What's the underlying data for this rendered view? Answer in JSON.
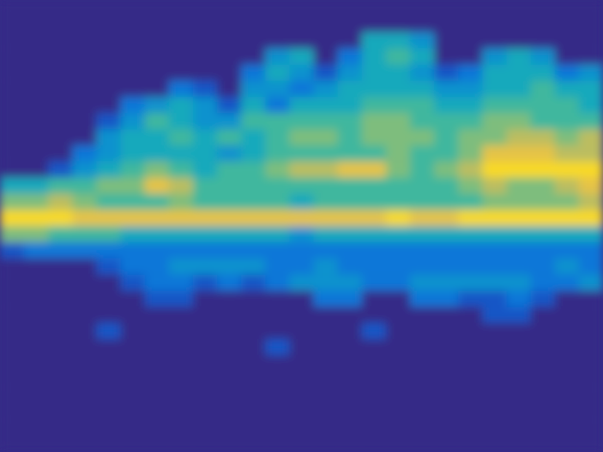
{
  "chart_data": {
    "type": "heatmap",
    "tick_labels": false,
    "zlim": [
      0,
      10
    ],
    "z": [
      [
        0,
        0,
        0,
        0,
        0,
        0,
        0,
        0,
        0,
        0,
        0,
        0,
        0,
        0,
        0,
        0,
        0,
        0,
        0,
        0,
        0,
        0,
        0,
        0,
        0
      ],
      [
        0,
        0,
        0,
        0,
        0,
        0,
        0,
        0,
        0,
        0,
        0,
        0,
        0,
        0,
        0,
        0,
        0,
        0,
        0,
        0,
        0,
        0,
        0,
        0,
        0
      ],
      [
        0,
        0,
        0,
        0,
        0,
        0,
        0,
        0,
        0,
        0,
        0,
        0,
        0,
        0,
        0,
        4,
        4,
        3,
        0,
        0,
        0,
        0,
        0,
        0,
        0
      ],
      [
        0,
        0,
        0,
        0,
        0,
        0,
        0,
        0,
        0,
        0,
        0,
        3,
        4,
        0,
        2,
        4,
        5,
        4,
        0,
        0,
        3,
        4,
        3,
        0,
        0
      ],
      [
        0,
        0,
        0,
        0,
        0,
        0,
        0,
        0,
        0,
        0,
        2,
        4,
        3,
        1,
        3,
        4,
        4,
        3,
        1,
        2,
        4,
        4,
        4,
        2,
        3
      ],
      [
        0,
        0,
        0,
        0,
        0,
        0,
        0,
        2,
        1,
        0,
        3,
        3,
        2,
        3,
        4,
        4,
        4,
        4,
        3,
        3,
        4,
        4,
        5,
        4,
        4
      ],
      [
        0,
        0,
        0,
        0,
        0,
        2,
        3,
        4,
        3,
        1,
        4,
        2,
        4,
        4,
        4,
        5,
        5,
        5,
        4,
        4,
        5,
        5,
        5,
        5,
        4
      ],
      [
        0,
        0,
        0,
        0,
        1,
        3,
        5,
        4,
        3,
        3,
        5,
        5,
        5,
        5,
        5,
        6,
        6,
        5,
        5,
        5,
        6,
        6,
        5,
        5,
        5
      ],
      [
        0,
        0,
        0,
        0,
        3,
        4,
        4,
        5,
        4,
        5,
        4,
        5,
        6,
        6,
        5,
        6,
        6,
        6,
        5,
        6,
        6,
        7,
        7,
        6,
        7
      ],
      [
        0,
        0,
        0,
        2,
        3,
        4,
        4,
        4,
        4,
        3,
        4,
        5,
        5,
        5,
        5,
        5,
        6,
        5,
        5,
        6,
        8,
        8,
        8,
        7,
        7
      ],
      [
        0,
        0,
        1,
        3,
        4,
        5,
        6,
        5,
        4,
        5,
        5,
        6,
        7,
        7,
        8,
        8,
        6,
        5,
        6,
        7,
        9,
        9,
        9,
        9,
        9
      ],
      [
        4,
        4,
        5,
        5,
        6,
        6,
        8,
        7,
        5,
        5,
        5,
        5,
        5,
        5,
        5,
        5,
        5,
        5,
        5,
        6,
        7,
        6,
        6,
        7,
        8
      ],
      [
        6,
        6,
        7,
        6,
        5,
        5,
        5,
        6,
        5,
        5,
        5,
        5,
        4,
        5,
        5,
        5,
        5,
        5,
        5,
        5,
        6,
        6,
        6,
        6,
        7
      ],
      [
        9,
        9,
        9,
        8,
        8,
        8,
        8,
        8,
        8,
        8,
        8,
        8,
        8,
        8,
        8,
        8,
        9,
        8,
        8,
        9,
        9,
        9,
        9,
        9,
        9
      ],
      [
        6,
        6,
        5,
        5,
        5,
        4,
        4,
        4,
        4,
        4,
        4,
        4,
        3,
        4,
        4,
        4,
        4,
        4,
        4,
        4,
        4,
        4,
        4,
        4,
        4
      ],
      [
        1,
        2,
        2,
        2,
        2,
        2,
        2,
        2,
        2,
        2,
        2,
        2,
        2,
        2,
        2,
        2,
        2,
        2,
        2,
        2,
        2,
        2,
        2,
        2,
        2
      ],
      [
        0,
        0,
        0,
        0,
        1,
        2,
        2,
        3,
        3,
        3,
        3,
        2,
        2,
        3,
        2,
        2,
        2,
        2,
        2,
        2,
        2,
        2,
        2,
        3,
        2
      ],
      [
        0,
        0,
        0,
        0,
        0,
        1,
        2,
        2,
        1,
        2,
        1,
        2,
        3,
        3,
        3,
        2,
        2,
        3,
        3,
        3,
        3,
        3,
        2,
        2,
        3
      ],
      [
        0,
        0,
        0,
        0,
        0,
        0,
        1,
        1,
        0,
        0,
        0,
        0,
        0,
        2,
        2,
        0,
        0,
        2,
        2,
        1,
        1,
        2,
        1,
        0,
        0
      ],
      [
        0,
        0,
        0,
        0,
        0,
        0,
        0,
        0,
        0,
        0,
        0,
        0,
        0,
        0,
        0,
        0,
        0,
        0,
        0,
        0,
        1,
        1,
        0,
        0,
        0
      ],
      [
        0,
        0,
        0,
        0,
        1,
        0,
        0,
        0,
        0,
        0,
        0,
        0,
        0,
        0,
        0,
        1,
        0,
        0,
        0,
        0,
        0,
        0,
        0,
        0,
        0
      ],
      [
        0,
        0,
        0,
        0,
        0,
        0,
        0,
        0,
        0,
        0,
        0,
        1,
        0,
        0,
        0,
        0,
        0,
        0,
        0,
        0,
        0,
        0,
        0,
        0,
        0
      ],
      [
        0,
        0,
        0,
        0,
        0,
        0,
        0,
        0,
        0,
        0,
        0,
        0,
        0,
        0,
        0,
        0,
        0,
        0,
        0,
        0,
        0,
        0,
        0,
        0,
        0
      ],
      [
        0,
        0,
        0,
        0,
        0,
        0,
        0,
        0,
        0,
        0,
        0,
        0,
        0,
        0,
        0,
        0,
        0,
        0,
        0,
        0,
        0,
        0,
        0,
        0,
        0
      ],
      [
        0,
        0,
        0,
        0,
        0,
        0,
        0,
        0,
        0,
        0,
        0,
        0,
        0,
        0,
        0,
        0,
        0,
        0,
        0,
        0,
        0,
        0,
        0,
        0,
        0
      ],
      [
        0,
        0,
        0,
        0,
        0,
        0,
        0,
        0,
        0,
        0,
        0,
        0,
        0,
        0,
        0,
        0,
        0,
        0,
        0,
        0,
        0,
        0,
        0,
        0,
        0
      ],
      [
        0,
        0,
        0,
        0,
        0,
        0,
        0,
        0,
        0,
        0,
        0,
        0,
        0,
        0,
        0,
        0,
        0,
        0,
        0,
        0,
        0,
        0,
        0,
        0,
        0
      ],
      [
        0,
        0,
        0,
        0,
        0,
        0,
        0,
        0,
        0,
        0,
        0,
        0,
        0,
        0,
        0,
        0,
        0,
        0,
        0,
        0,
        0,
        0,
        0,
        0,
        0
      ]
    ]
  }
}
